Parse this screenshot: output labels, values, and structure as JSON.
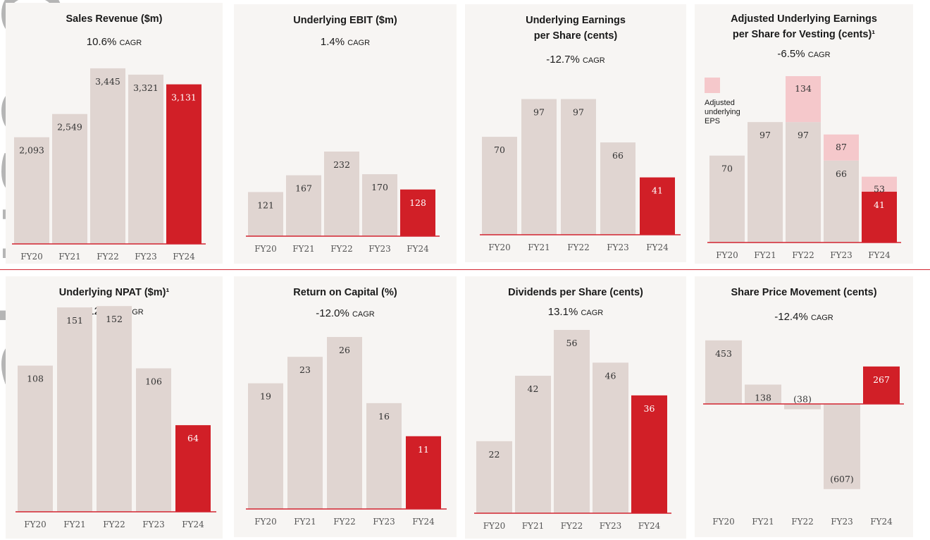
{
  "colors": {
    "bar": "#e0d5d1",
    "highlight": "#d11f27",
    "adjusted": "#f5c8cb",
    "baseline": "#d22430",
    "panel": "#f7f5f3"
  },
  "watermark": "al use only",
  "chart_data": [
    {
      "type": "bar",
      "title": "Sales Revenue ($m)",
      "cagr": "10.6%",
      "cagr_label": "CAGR",
      "categories": [
        "FY20",
        "FY21",
        "FY22",
        "FY23",
        "FY24"
      ],
      "values": [
        2093,
        2549,
        3445,
        3321,
        3131
      ],
      "labels": [
        "2,093",
        "2,549",
        "3,445",
        "3,321",
        "3,131"
      ],
      "highlight": [
        4
      ]
    },
    {
      "type": "bar",
      "title": "Underlying EBIT ($m)",
      "cagr": "1.4%",
      "cagr_label": "CAGR",
      "categories": [
        "FY20",
        "FY21",
        "FY22",
        "FY23",
        "FY24"
      ],
      "values": [
        121,
        167,
        232,
        170,
        128
      ],
      "labels": [
        "121",
        "167",
        "232",
        "170",
        "128"
      ],
      "highlight": [
        4
      ]
    },
    {
      "type": "bar",
      "title": "Underlying Earnings per Share (cents)",
      "cagr": "-12.7%",
      "cagr_label": "CAGR",
      "categories": [
        "FY20",
        "FY21",
        "FY22",
        "FY23",
        "FY24"
      ],
      "values": [
        70,
        97,
        97,
        66,
        41
      ],
      "labels": [
        "70",
        "97",
        "97",
        "66",
        "41"
      ],
      "highlight": [
        4
      ]
    },
    {
      "type": "bar",
      "title": "Adjusted Underlying Earnings per Share for Vesting (cents)¹",
      "cagr": "-6.5%",
      "cagr_label": "CAGR",
      "categories": [
        "FY20",
        "FY21",
        "FY22",
        "FY23",
        "FY24"
      ],
      "series": [
        {
          "values": [
            70,
            97,
            97,
            66,
            41
          ],
          "labels": [
            "70",
            "97",
            "97",
            "66",
            "41"
          ]
        },
        {
          "name": "Adjusted underlying EPS",
          "values": [
            null,
            null,
            134,
            87,
            53
          ],
          "labels": [
            "",
            "",
            "134",
            "87",
            "53"
          ]
        }
      ],
      "highlight": [
        4
      ]
    },
    {
      "type": "bar",
      "title": "Underlying NPAT ($m)¹",
      "cagr": "-12.3%",
      "cagr_label": "CAGR",
      "categories": [
        "FY20",
        "FY21",
        "FY22",
        "FY23",
        "FY24"
      ],
      "values": [
        108,
        151,
        152,
        106,
        64
      ],
      "labels": [
        "108",
        "151",
        "152",
        "106",
        "64"
      ],
      "highlight": [
        4
      ]
    },
    {
      "type": "bar",
      "title": "Return on Capital (%)",
      "cagr": "-12.0%",
      "cagr_label": "CAGR",
      "categories": [
        "FY20",
        "FY21",
        "FY22",
        "FY23",
        "FY24"
      ],
      "values": [
        19,
        23,
        26,
        16,
        11
      ],
      "labels": [
        "19",
        "23",
        "26",
        "16",
        "11"
      ],
      "highlight": [
        4
      ]
    },
    {
      "type": "bar",
      "title": "Dividends per Share (cents)",
      "cagr": "13.1%",
      "cagr_label": "CAGR",
      "categories": [
        "FY20",
        "FY21",
        "FY22",
        "FY23",
        "FY24"
      ],
      "values": [
        22,
        42,
        56,
        46,
        36
      ],
      "labels": [
        "22",
        "42",
        "56",
        "46",
        "36"
      ],
      "highlight": [
        4
      ]
    },
    {
      "type": "bar",
      "title": "Share Price Movement (cents)",
      "cagr": "-12.4%",
      "cagr_label": "CAGR",
      "categories": [
        "FY20",
        "FY21",
        "FY22",
        "FY23",
        "FY24"
      ],
      "values": [
        453,
        138,
        -38,
        -607,
        267
      ],
      "labels": [
        "453",
        "138",
        "(38)",
        "(607)",
        "267"
      ],
      "highlight": [
        4
      ]
    }
  ]
}
